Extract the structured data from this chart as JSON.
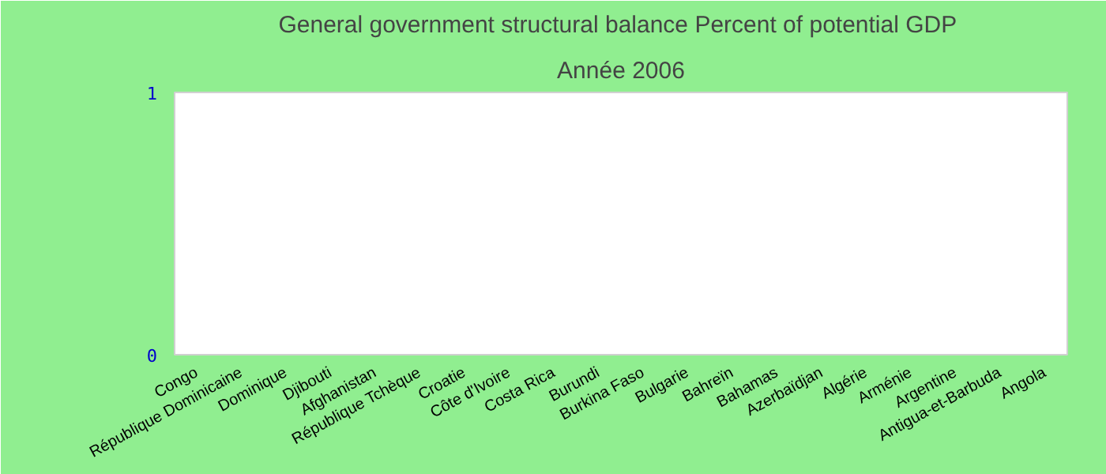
{
  "chart_data": {
    "type": "bar",
    "title": "General government structural balance  Percent of potential GDP",
    "subtitle": "Année 2006",
    "categories": [
      "Congo",
      "République Dominicaine",
      "Dominique",
      "Djibouti",
      "Afghanistan",
      "République Tchèque",
      "Croatie",
      "Côte d'Ivoire",
      "Costa Rica",
      "Burundi",
      "Burkina Faso",
      "Bulgarie",
      "Bahreïn",
      "Bahamas",
      "Azerbaïdjan",
      "Algérie",
      "Arménie",
      "Argentine",
      "Antigua-et-Barbuda",
      "Angola"
    ],
    "values": [
      null,
      null,
      null,
      null,
      null,
      null,
      null,
      null,
      null,
      null,
      null,
      null,
      null,
      null,
      null,
      null,
      null,
      null,
      null,
      null
    ],
    "ylim": [
      0,
      1
    ],
    "yticks": [
      0,
      1
    ]
  }
}
